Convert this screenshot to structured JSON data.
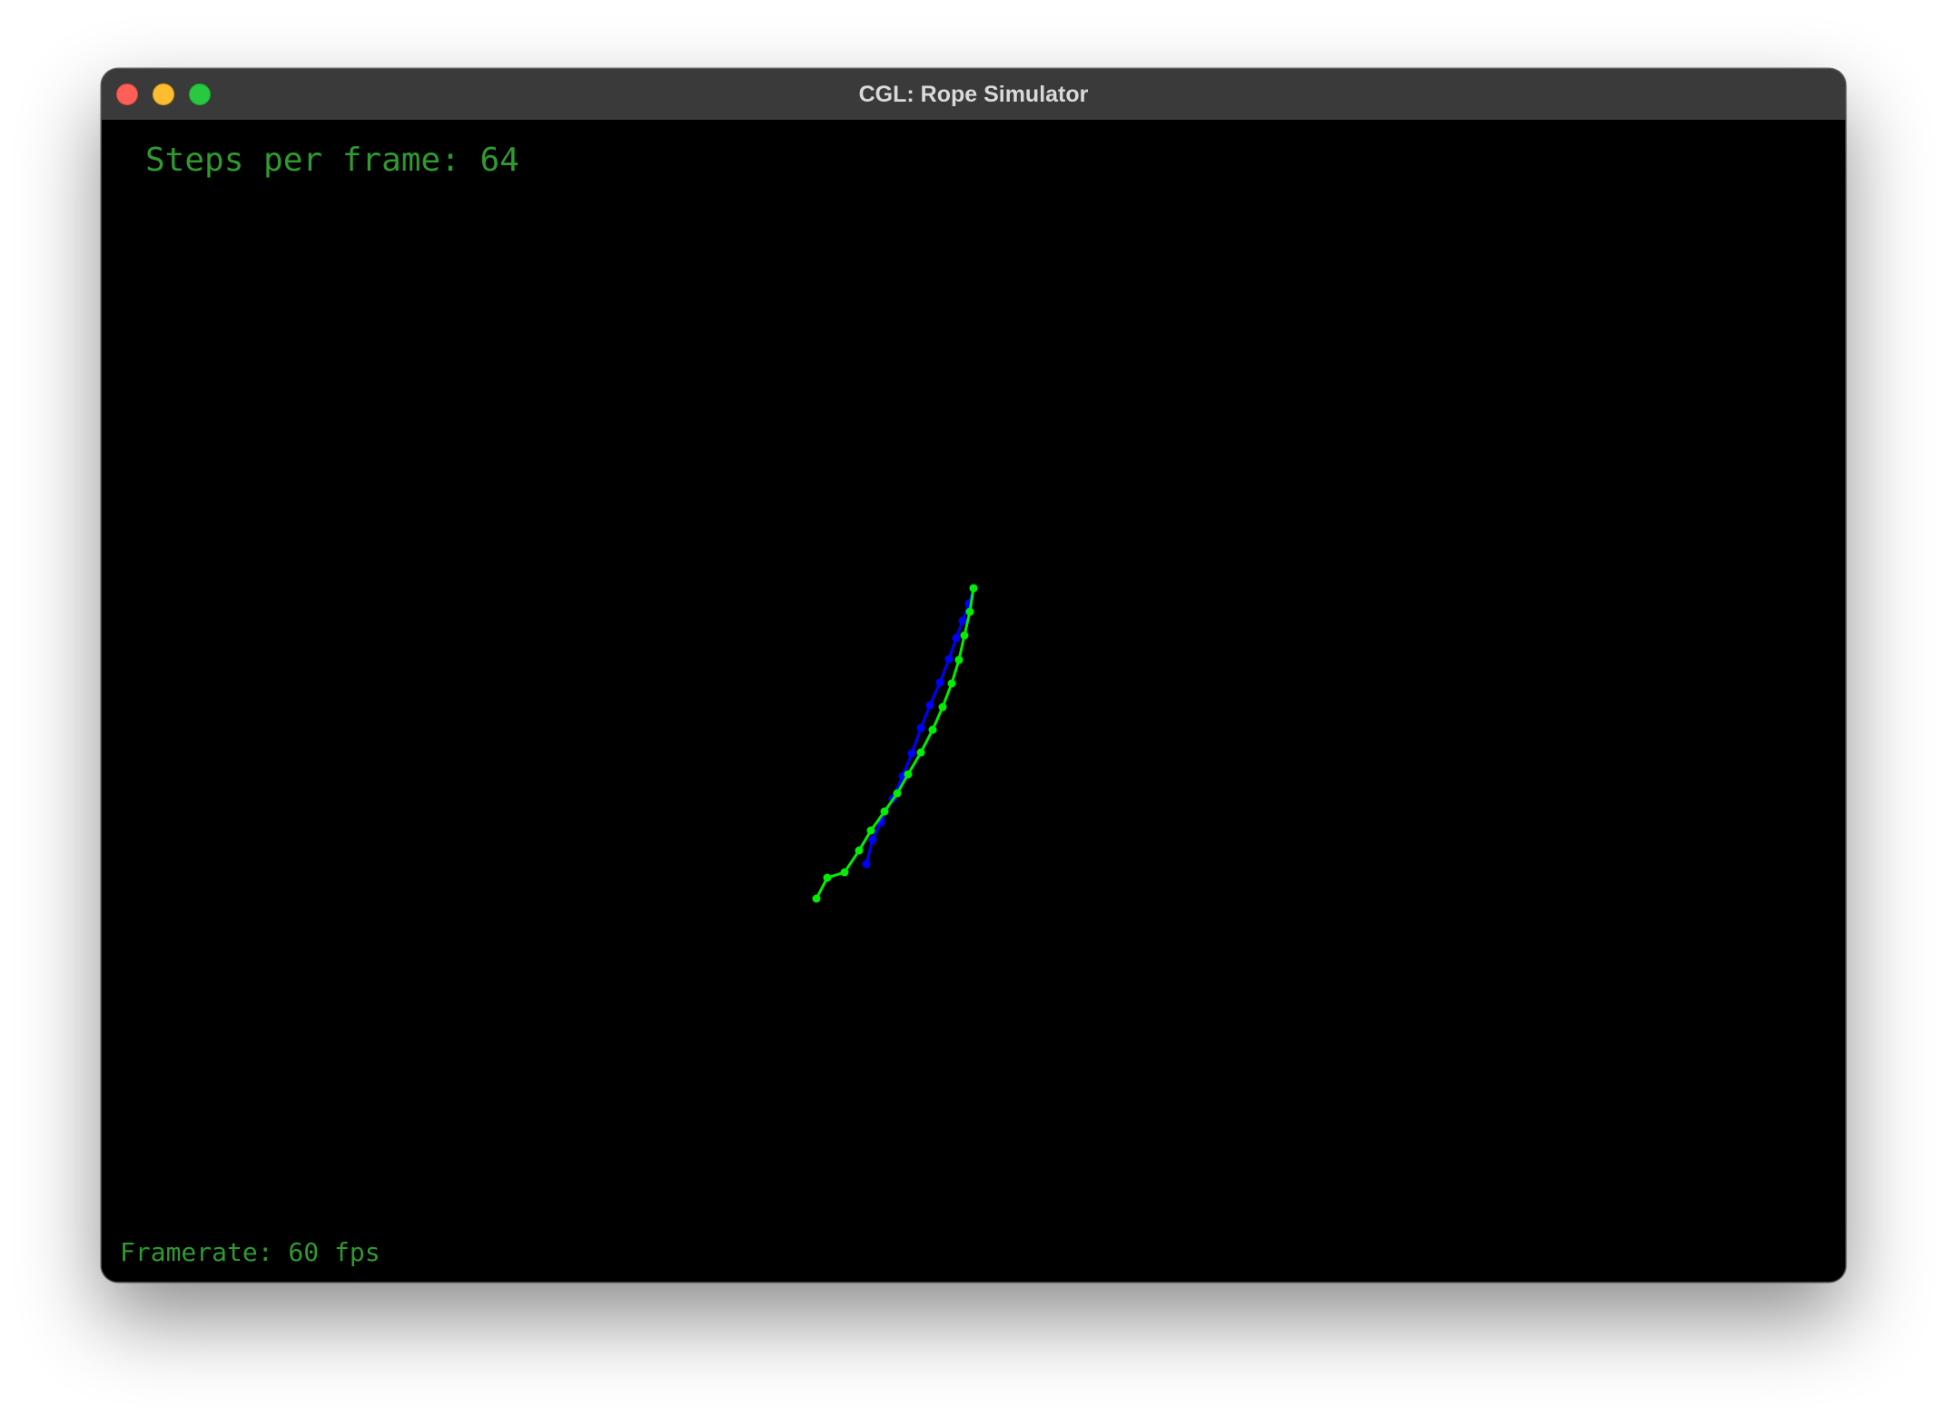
{
  "window": {
    "title": "CGL: Rope Simulator"
  },
  "hud": {
    "steps_label": "Steps per frame: 64",
    "framerate_label": "Framerate: 60 fps"
  },
  "colors": {
    "background": "#000000",
    "hud_text": "#2f9a2f",
    "rope_green": "#00ee00",
    "rope_blue": "#0000ff"
  }
}
